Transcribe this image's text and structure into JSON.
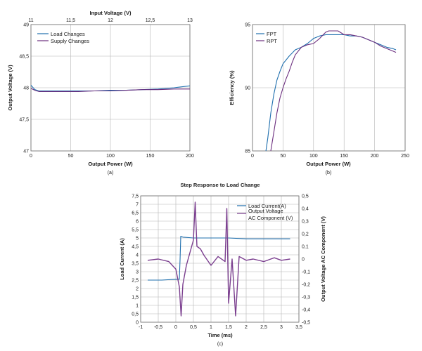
{
  "chart_data": [
    {
      "id": "a",
      "type": "line",
      "panel_label": "(a)",
      "title": "Input Voltage (V)",
      "xlabel": "Output Power (W)",
      "ylabel": "Output Voltage (V)",
      "xlim": [
        0,
        200
      ],
      "ylim": [
        47,
        49
      ],
      "x_ticks": [
        "0",
        "50",
        "100",
        "150",
        "200"
      ],
      "y_ticks": [
        "47",
        "47,5",
        "48",
        "48,5",
        "49"
      ],
      "top_axis": {
        "range": [
          11,
          13
        ],
        "ticks": [
          "11",
          "11,5",
          "12",
          "12,5",
          "13"
        ]
      },
      "grid": true,
      "legend_position": "top-left",
      "series": [
        {
          "name": "Load Changes",
          "color": "#1f6fae",
          "x": [
            0,
            5,
            10,
            20,
            40,
            60,
            80,
            100,
            120,
            140,
            160,
            180,
            200
          ],
          "y": [
            48.04,
            47.97,
            47.95,
            47.95,
            47.95,
            47.95,
            47.95,
            47.96,
            47.96,
            47.97,
            47.98,
            48.0,
            48.03
          ]
        },
        {
          "name": "Supply Changes",
          "color": "#6c2f7f",
          "x": [
            0,
            5,
            10,
            20,
            40,
            60,
            80,
            100,
            120,
            140,
            160,
            180,
            200
          ],
          "y": [
            47.99,
            47.96,
            47.94,
            47.94,
            47.94,
            47.94,
            47.95,
            47.95,
            47.96,
            47.97,
            47.97,
            47.98,
            47.98
          ]
        }
      ]
    },
    {
      "id": "b",
      "type": "line",
      "panel_label": "(b)",
      "xlabel": "Output Power (W)",
      "ylabel": "Efficiency (%)",
      "xlim": [
        0,
        250
      ],
      "ylim": [
        85,
        95
      ],
      "x_ticks": [
        "0",
        "50",
        "100",
        "150",
        "200",
        "250"
      ],
      "y_ticks": [
        "85",
        "90",
        "95"
      ],
      "grid": true,
      "legend_position": "top-left",
      "series": [
        {
          "name": "FPT",
          "color": "#1f6fae",
          "x": [
            22,
            25,
            30,
            35,
            40,
            45,
            50,
            60,
            70,
            80,
            90,
            100,
            110,
            120,
            130,
            140,
            150,
            160,
            170,
            180,
            190,
            200,
            210,
            220,
            230,
            235
          ],
          "y": [
            85.0,
            86.0,
            88.0,
            89.5,
            90.6,
            91.3,
            91.9,
            92.5,
            93.0,
            93.2,
            93.5,
            93.9,
            94.1,
            94.2,
            94.2,
            94.2,
            94.2,
            94.1,
            94.1,
            94.0,
            93.8,
            93.6,
            93.4,
            93.2,
            93.1,
            93.0
          ]
        },
        {
          "name": "RPT",
          "color": "#6c2f7f",
          "x": [
            30,
            35,
            40,
            45,
            50,
            55,
            60,
            65,
            70,
            80,
            90,
            100,
            110,
            120,
            125,
            130,
            140,
            150,
            160,
            170,
            180,
            190,
            200,
            210,
            220,
            230,
            235
          ],
          "y": [
            85.0,
            86.5,
            88.0,
            89.2,
            90.0,
            90.7,
            91.3,
            92.0,
            92.6,
            93.2,
            93.4,
            93.5,
            93.9,
            94.4,
            94.5,
            94.5,
            94.5,
            94.2,
            94.2,
            94.1,
            94.0,
            93.8,
            93.6,
            93.3,
            93.1,
            92.9,
            92.8
          ]
        }
      ]
    },
    {
      "id": "c",
      "type": "line",
      "panel_label": "(c)",
      "title": "Step Response to Load Change",
      "xlabel": "Time (ms)",
      "ylabel": "Load Current (A)",
      "y2label": "Output Voltage AC Component (V)",
      "xlim": [
        -1,
        3.5
      ],
      "ylim": [
        0,
        7.5
      ],
      "y2lim": [
        -0.5,
        0.5
      ],
      "x_ticks": [
        "-1",
        "-0,5",
        "0",
        "0,5",
        "1",
        "1,5",
        "2",
        "2,5",
        "3",
        "3,5"
      ],
      "y_ticks": [
        "0",
        "0,5",
        "1",
        "1,5",
        "2",
        "2,5",
        "3",
        "3,5",
        "4",
        "4,5",
        "5",
        "5,5",
        "6",
        "6,5",
        "7",
        "7,5"
      ],
      "y2_ticks": [
        "-0,5",
        "-0,4",
        "-0,3",
        "-0,2",
        "-0,1",
        "0",
        "0,1",
        "0,2",
        "0,3",
        "0,4",
        "0,5"
      ],
      "grid": true,
      "legend_position": "top-right",
      "series": [
        {
          "name": "Load Current(A)",
          "color": "#1f6fae",
          "axis": "left",
          "x": [
            -0.8,
            -0.4,
            0.0,
            0.1,
            0.12,
            0.14,
            0.2,
            0.5,
            1.0,
            1.5,
            2.0,
            2.5,
            3.0,
            3.25
          ],
          "y": [
            2.5,
            2.5,
            2.55,
            2.55,
            3.7,
            5.1,
            5.05,
            5.0,
            5.0,
            5.0,
            4.95,
            4.95,
            4.95,
            4.95
          ]
        },
        {
          "name": "Output Voltage AC Component (V)",
          "color": "#7b3f8f",
          "axis": "right",
          "x": [
            -0.8,
            -0.5,
            -0.2,
            0.0,
            0.1,
            0.15,
            0.2,
            0.3,
            0.4,
            0.5,
            0.55,
            0.6,
            0.7,
            0.8,
            1.0,
            1.2,
            1.4,
            1.45,
            1.5,
            1.6,
            1.7,
            1.8,
            2.0,
            2.2,
            2.5,
            2.8,
            3.0,
            3.25
          ],
          "y": [
            -0.01,
            0.0,
            -0.02,
            -0.08,
            -0.22,
            -0.45,
            -0.2,
            -0.05,
            0.05,
            0.15,
            0.45,
            0.1,
            0.08,
            0.03,
            -0.05,
            0.02,
            -0.02,
            0.4,
            -0.35,
            0.0,
            -0.45,
            0.02,
            -0.01,
            0.0,
            -0.02,
            0.01,
            -0.01,
            0.0
          ]
        }
      ]
    }
  ]
}
